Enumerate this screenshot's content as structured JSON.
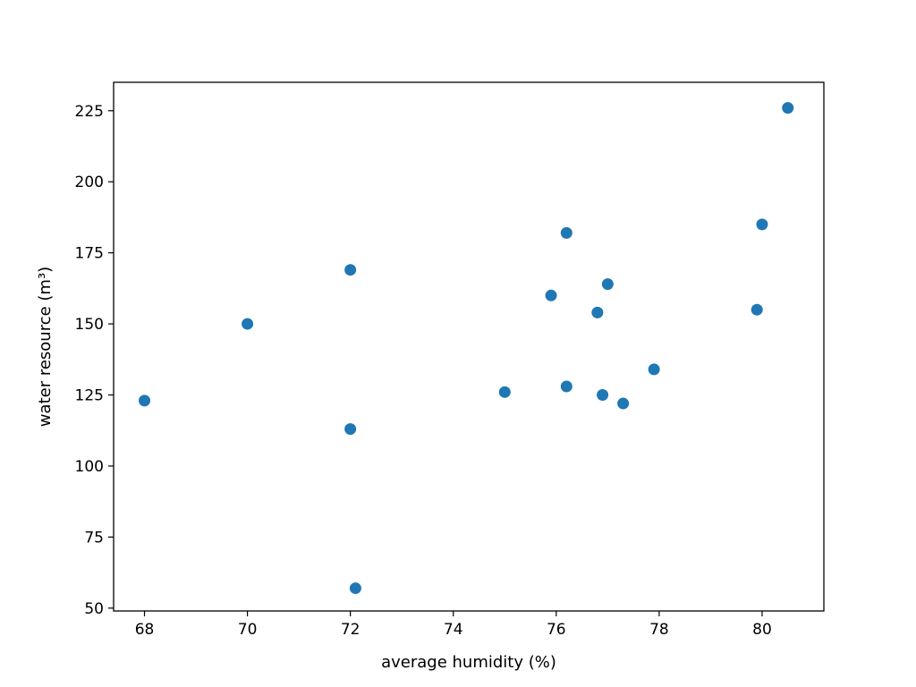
{
  "chart_data": {
    "type": "scatter",
    "title": "",
    "xlabel": "average humidity (%)",
    "ylabel": "water resource (m³)",
    "xlim": [
      67.4,
      81.2
    ],
    "ylim": [
      49,
      235
    ],
    "xticks": [
      68,
      70,
      72,
      74,
      76,
      78,
      80
    ],
    "yticks": [
      50,
      75,
      100,
      125,
      150,
      175,
      200,
      225
    ],
    "grid": false,
    "legend": "none",
    "color": "#1f77b4",
    "points": [
      {
        "x": 68.0,
        "y": 123
      },
      {
        "x": 70.0,
        "y": 150
      },
      {
        "x": 72.0,
        "y": 169
      },
      {
        "x": 72.0,
        "y": 113
      },
      {
        "x": 72.1,
        "y": 57
      },
      {
        "x": 75.0,
        "y": 126
      },
      {
        "x": 75.9,
        "y": 160
      },
      {
        "x": 76.2,
        "y": 182
      },
      {
        "x": 76.2,
        "y": 128
      },
      {
        "x": 76.8,
        "y": 154
      },
      {
        "x": 76.9,
        "y": 125
      },
      {
        "x": 77.0,
        "y": 164
      },
      {
        "x": 77.3,
        "y": 122
      },
      {
        "x": 77.9,
        "y": 134
      },
      {
        "x": 79.9,
        "y": 155
      },
      {
        "x": 80.0,
        "y": 185
      },
      {
        "x": 80.5,
        "y": 226
      }
    ]
  }
}
